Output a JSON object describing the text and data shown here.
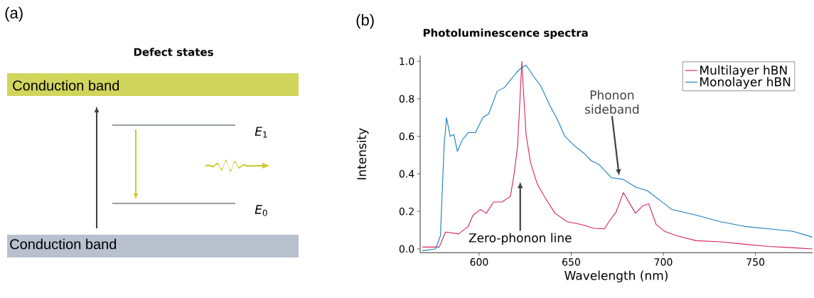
{
  "chart_data": [
    {
      "type": "other",
      "title": "Defect states",
      "annotations": [
        "(a)",
        "Conduction band",
        "Conduction band",
        "*E*$_{1}$",
        "*E*$_{0}$"
      ]
    },
    {
      "type": "line",
      "title": "Photoluminescence spectra",
      "xlabel": "Wavelength (nm)",
      "ylabel": "Intensity",
      "xlim": [
        568,
        781
      ],
      "ylim": [
        -0.02,
        1.03
      ],
      "xticks": [
        600,
        650,
        700,
        750
      ],
      "yticks": [
        {
          "value": 0,
          "label": "0.0"
        },
        {
          "value": 0.2,
          "label": "0.2"
        },
        {
          "value": 0.4,
          "label": "0.4"
        },
        {
          "value": 0.6,
          "label": "0.6"
        },
        {
          "value": 0.8,
          "label": "0.8"
        },
        {
          "value": 1,
          "label": "1.0"
        }
      ],
      "legend": "top right",
      "grid": false,
      "annotations": [
        "(b)",
        "Zero-phonon line",
        {
          "text": "Phonon sideband",
          "x": 676,
          "y": 0.39
        }
      ],
      "series": [
        {
          "name": "Multilayer hBN",
          "color": "#d6245e",
          "x": [
            569.2,
            578.4,
            581.7,
            588.9,
            594.1,
            596.7,
            600.7,
            603.9,
            607.9,
            612.4,
            617,
            619,
            620.9,
            622.3,
            623.2,
            624.2,
            625.5,
            627.9,
            631.4,
            636,
            641.2,
            647.8,
            655.6,
            662.2,
            668.1,
            670.4,
            674.3,
            678.3,
            681.6,
            684.9,
            688.8,
            692.1,
            696.1,
            700.7,
            707.2,
            717.8,
            730.9,
            744.1,
            757.2,
            770.4,
            780.9
          ],
          "values": [
            0.01,
            0.01,
            0.09,
            0.08,
            0.12,
            0.18,
            0.21,
            0.19,
            0.25,
            0.25,
            0.28,
            0.4,
            0.55,
            0.82,
            1.0,
            0.82,
            0.61,
            0.46,
            0.35,
            0.27,
            0.19,
            0.145,
            0.13,
            0.11,
            0.107,
            0.145,
            0.195,
            0.3,
            0.245,
            0.19,
            0.23,
            0.24,
            0.13,
            0.094,
            0.07,
            0.044,
            0.038,
            0.025,
            0.013,
            0.006,
            0.0
          ]
        },
        {
          "name": "Monolayer hBN",
          "color": "#1a7dc0",
          "x": [
            569.2,
            576.4,
            579,
            581,
            582.3,
            584.3,
            586.3,
            588.2,
            590.8,
            594.1,
            598,
            602,
            605.2,
            609.8,
            613.7,
            617,
            620.3,
            622.3,
            625.5,
            629.5,
            633.4,
            638.6,
            642.5,
            646.5,
            651.7,
            656.9,
            660.9,
            665.1,
            671.7,
            678.3,
            684.9,
            691.4,
            698,
            704.6,
            717.8,
            730.9,
            744.1,
            757.2,
            770.4,
            780.9
          ],
          "values": [
            -0.01,
            0.0,
            0.07,
            0.55,
            0.7,
            0.6,
            0.61,
            0.52,
            0.58,
            0.62,
            0.62,
            0.7,
            0.72,
            0.84,
            0.86,
            0.9,
            0.94,
            0.96,
            0.98,
            0.92,
            0.87,
            0.76,
            0.69,
            0.6,
            0.55,
            0.51,
            0.47,
            0.45,
            0.38,
            0.37,
            0.33,
            0.31,
            0.26,
            0.21,
            0.18,
            0.145,
            0.12,
            0.107,
            0.094,
            0.063
          ]
        }
      ]
    }
  ]
}
